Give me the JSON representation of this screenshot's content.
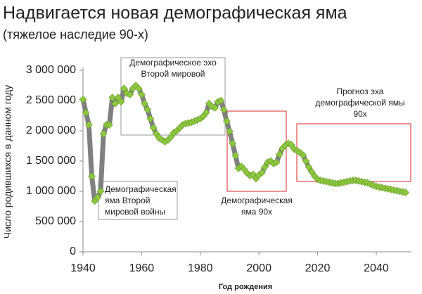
{
  "chart_data": {
    "type": "line",
    "title": "Надвигается новая демографическая яма",
    "subtitle": "(тяжелое наследие 90-х)",
    "ylabel": "Число родившихся в данном году",
    "xlabel": "Год рождения",
    "x": [
      1940,
      1941,
      1942,
      1943,
      1944,
      1945,
      1946,
      1947,
      1948,
      1949,
      1950,
      1951,
      1952,
      1953,
      1954,
      1955,
      1956,
      1957,
      1958,
      1959,
      1960,
      1961,
      1962,
      1963,
      1964,
      1965,
      1966,
      1967,
      1968,
      1969,
      1970,
      1971,
      1972,
      1973,
      1974,
      1975,
      1976,
      1977,
      1978,
      1979,
      1980,
      1981,
      1982,
      1983,
      1984,
      1985,
      1986,
      1987,
      1988,
      1989,
      1990,
      1991,
      1992,
      1993,
      1994,
      1995,
      1996,
      1997,
      1998,
      1999,
      2000,
      2001,
      2002,
      2003,
      2004,
      2005,
      2006,
      2007,
      2008,
      2009,
      2010,
      2011,
      2012,
      2013,
      2014,
      2015,
      2016,
      2017,
      2018,
      2019,
      2020,
      2021,
      2022,
      2023,
      2024,
      2025,
      2026,
      2027,
      2028,
      2029,
      2030,
      2031,
      2032,
      2033,
      2034,
      2035,
      2036,
      2037,
      2038,
      2039,
      2040,
      2041,
      2042,
      2043,
      2044,
      2045,
      2046,
      2047,
      2048,
      2049,
      2050
    ],
    "series": [
      {
        "color": "#8dc63f",
        "line_color": "#808080",
        "values": [
          2520000,
          2300000,
          2100000,
          1250000,
          840000,
          900000,
          1000000,
          1950000,
          2100000,
          2100000,
          2550000,
          2450000,
          2550000,
          2480000,
          2700000,
          2620000,
          2600000,
          2700000,
          2750000,
          2700000,
          2600000,
          2450000,
          2350000,
          2200000,
          2050000,
          1950000,
          1880000,
          1850000,
          1820000,
          1850000,
          1900000,
          1970000,
          2000000,
          2050000,
          2100000,
          2120000,
          2130000,
          2140000,
          2160000,
          2180000,
          2200000,
          2240000,
          2300000,
          2450000,
          2400000,
          2380000,
          2480000,
          2500000,
          2350000,
          2160000,
          1990000,
          1790000,
          1590000,
          1380000,
          1410000,
          1360000,
          1300000,
          1260000,
          1280000,
          1210000,
          1270000,
          1310000,
          1400000,
          1480000,
          1500000,
          1460000,
          1480000,
          1610000,
          1710000,
          1760000,
          1790000,
          1770000,
          1700000,
          1670000,
          1640000,
          1600000,
          1500000,
          1400000,
          1320000,
          1250000,
          1200000,
          1180000,
          1170000,
          1160000,
          1150000,
          1140000,
          1130000,
          1130000,
          1140000,
          1150000,
          1160000,
          1170000,
          1180000,
          1180000,
          1170000,
          1160000,
          1150000,
          1140000,
          1120000,
          1100000,
          1080000,
          1070000,
          1060000,
          1050000,
          1040000,
          1030000,
          1020000,
          1010000,
          1000000,
          990000,
          980000
        ]
      }
    ],
    "xlim": [
      1940,
      2052
    ],
    "ylim": [
      0,
      3000000
    ],
    "xticks": [
      1940,
      1960,
      1980,
      2000,
      2020,
      2040
    ],
    "yticks": [
      0,
      {
        "value": 500000,
        "label": "500 000"
      },
      {
        "value": 1000000,
        "label": "1 000 000"
      },
      {
        "value": 1500000,
        "label": "1 500 000"
      },
      {
        "value": 2000000,
        "label": "2 000 000"
      },
      {
        "value": 2500000,
        "label": "2 500 000"
      },
      {
        "value": 3000000,
        "label": "3 000 000"
      }
    ],
    "annotations": [
      {
        "lines": [
          "Демографическое эхо",
          "Второй мировой"
        ],
        "color": "#999999"
      },
      {
        "lines": [
          "Демографическая",
          "яма Второй",
          "мировой войны"
        ],
        "color": "#999999"
      },
      {
        "lines": [
          "Демографическая",
          "яма 90х"
        ],
        "color": "#d9262b"
      },
      {
        "lines": [
          "Прогноз эха",
          "демографической ямы",
          "90х"
        ],
        "color": "#d9262b"
      }
    ]
  }
}
